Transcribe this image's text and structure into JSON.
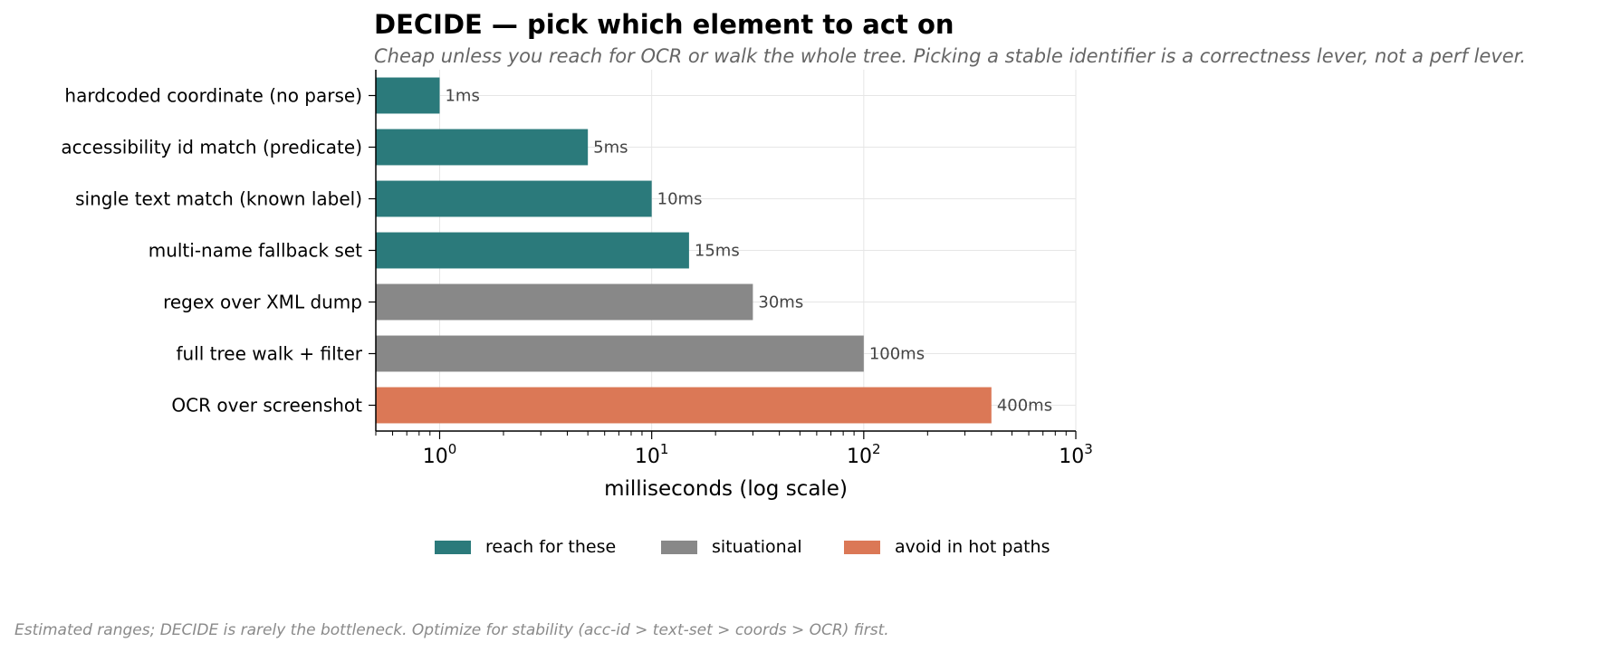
{
  "chart_data": {
    "type": "bar",
    "orientation": "horizontal",
    "title": "DECIDE — pick which element to act on",
    "subtitle": "Cheap unless you reach for OCR or walk the whole tree. Picking a stable identifier is a correctness lever, not a perf lever.",
    "footnote": "Estimated ranges; DECIDE is rarely the bottleneck. Optimize for stability (acc-id > text-set > coords > OCR) first.",
    "xlabel": "milliseconds (log scale)",
    "ylabel": "",
    "xscale": "log",
    "xlim": [
      0.5,
      1000
    ],
    "xticks": [
      1,
      10,
      100,
      1000
    ],
    "xtick_labels": [
      "10^0",
      "10^1",
      "10^2",
      "10^3"
    ],
    "grid": true,
    "legend_position": "bottom-center",
    "categories": [
      "hardcoded coordinate (no parse)",
      "accessibility id match (predicate)",
      "single text match (known label)",
      "multi-name fallback set",
      "regex over XML dump",
      "full tree walk + filter",
      "OCR over screenshot"
    ],
    "values": [
      1,
      5,
      10,
      15,
      30,
      100,
      400
    ],
    "value_labels": [
      "1ms",
      "5ms",
      "10ms",
      "15ms",
      "30ms",
      "100ms",
      "400ms"
    ],
    "groups": [
      "reach",
      "reach",
      "reach",
      "reach",
      "situational",
      "situational",
      "avoid"
    ],
    "legend": [
      {
        "key": "reach",
        "label": "reach for these",
        "color": "#2b7a7b"
      },
      {
        "key": "situational",
        "label": "situational",
        "color": "#888888"
      },
      {
        "key": "avoid",
        "label": "avoid in hot paths",
        "color": "#db7856"
      }
    ]
  }
}
